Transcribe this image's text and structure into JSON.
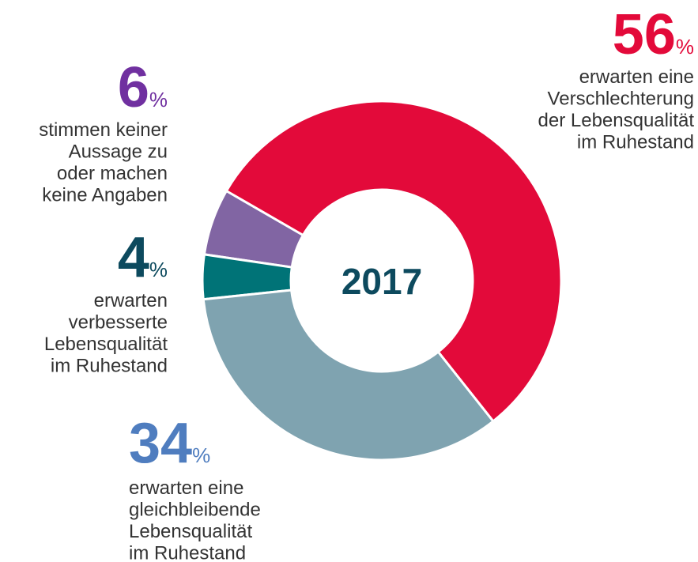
{
  "chart_data": {
    "type": "donut",
    "center_text": "2017",
    "unit": "%",
    "values": [
      56,
      34,
      4,
      6
    ],
    "categories": [
      [
        "erwarten eine",
        "Verschlechterung",
        "der Lebensqualität",
        "im Ruhestand"
      ],
      [
        "erwarten eine",
        "gleichbleibende",
        "Lebensqualität",
        "im Ruhestand"
      ],
      [
        "erwarten",
        "verbesserte",
        "Lebensqualität",
        "im Ruhestand"
      ],
      [
        "stimmen keiner",
        "Aussage zu",
        "oder machen",
        "keine Angaben"
      ]
    ],
    "colors": [
      "#e30a3a",
      "#7fa3b0",
      "#007377",
      "#8165a3"
    ],
    "label_colors": [
      "#e30a3a",
      "#4f7dbf",
      "#0d4a5e",
      "#7030a0"
    ]
  }
}
